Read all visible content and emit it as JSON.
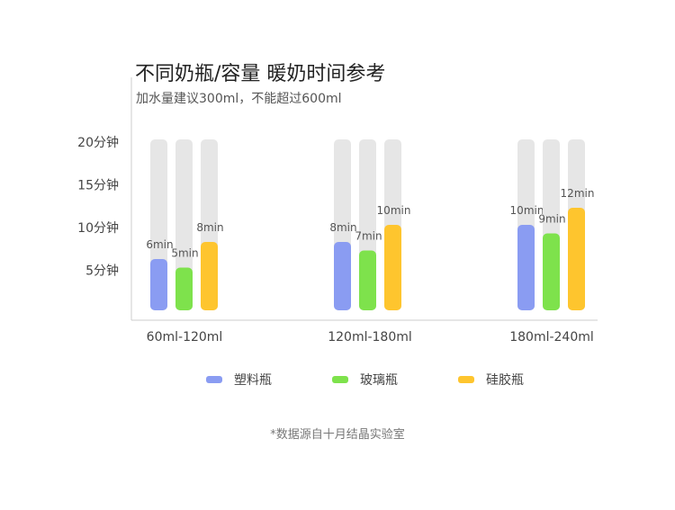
{
  "title": "不同奶瓶/容量 暖奶时间参考",
  "subtitle": "加水量建议300ml，不能超过600ml",
  "source": "*数据源自十月结晶实验室",
  "chart_data": {
    "type": "bar",
    "categories": [
      "60ml-120ml",
      "120ml-180ml",
      "180ml-240ml"
    ],
    "series": [
      {
        "name": "塑料瓶",
        "values": [
          6,
          8,
          10
        ],
        "labels": [
          "6min",
          "8min",
          "10min"
        ],
        "color": "#8a9cf2"
      },
      {
        "name": "玻璃瓶",
        "values": [
          5,
          7,
          9
        ],
        "labels": [
          "5min",
          "7min",
          "9min"
        ],
        "color": "#7ee24c"
      },
      {
        "name": "硅胶瓶",
        "values": [
          8,
          10,
          12
        ],
        "labels": [
          "8min",
          "10min",
          "12min"
        ],
        "color": "#fec52e"
      }
    ],
    "ylim": [
      0,
      20
    ],
    "yticks": [
      {
        "value": 5,
        "label": "5分钟"
      },
      {
        "value": 10,
        "label": "10分钟"
      },
      {
        "value": 15,
        "label": "15分钟"
      },
      {
        "value": 20,
        "label": "20分钟"
      }
    ],
    "track_color": "#e6e6e6",
    "axis_color": "#cccccc",
    "legend_position": "bottom",
    "grid": false
  }
}
